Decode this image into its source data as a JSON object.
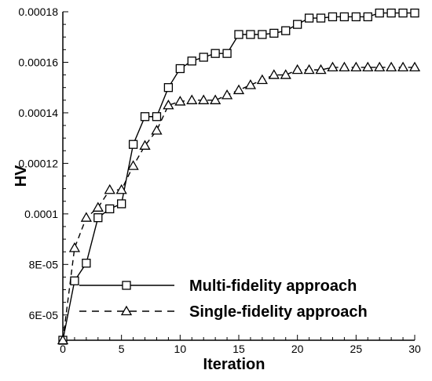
{
  "chart_data": {
    "type": "line",
    "title": "",
    "xlabel": "Iteration",
    "ylabel": "HV",
    "xlim": [
      0,
      30
    ],
    "ylim": [
      5e-05,
      0.00018
    ],
    "x_ticks": [
      {
        "value": 0,
        "label": "0"
      },
      {
        "value": 5,
        "label": "5"
      },
      {
        "value": 10,
        "label": "10"
      },
      {
        "value": 15,
        "label": "15"
      },
      {
        "value": 20,
        "label": "20"
      },
      {
        "value": 25,
        "label": "25"
      },
      {
        "value": 30,
        "label": "30"
      }
    ],
    "y_ticks": [
      {
        "value": 6e-05,
        "label": "6E-05"
      },
      {
        "value": 8e-05,
        "label": "8E-05"
      },
      {
        "value": 0.0001,
        "label": "0.0001"
      },
      {
        "value": 0.00012,
        "label": "0.00012"
      },
      {
        "value": 0.00014,
        "label": "0.00014"
      },
      {
        "value": 0.00016,
        "label": "0.00016"
      },
      {
        "value": 0.00018,
        "label": "0.00018"
      }
    ],
    "grid": false,
    "legend_position": "bottom-right",
    "series": [
      {
        "name": "Multi-fidelity approach",
        "marker": "square",
        "line_style": "solid",
        "x": [
          0,
          1,
          2,
          3,
          4,
          5,
          6,
          7,
          8,
          9,
          10,
          11,
          12,
          13,
          14,
          15,
          16,
          17,
          18,
          19,
          20,
          21,
          22,
          23,
          24,
          25,
          26,
          27,
          28,
          29,
          30
        ],
        "y": [
          5e-05,
          7.35e-05,
          8.05e-05,
          9.85e-05,
          0.000102,
          0.000104,
          0.0001275,
          0.0001385,
          0.0001385,
          0.00015,
          0.0001575,
          0.0001605,
          0.000162,
          0.0001635,
          0.0001635,
          0.000171,
          0.000171,
          0.000171,
          0.0001715,
          0.0001725,
          0.000175,
          0.0001775,
          0.0001775,
          0.000178,
          0.000178,
          0.000178,
          0.000178,
          0.0001795,
          0.0001795,
          0.0001795,
          0.0001795
        ]
      },
      {
        "name": "Single-fidelity approach",
        "marker": "triangle",
        "line_style": "dashed",
        "x": [
          0,
          1,
          2,
          3,
          4,
          5,
          6,
          7,
          8,
          9,
          10,
          11,
          12,
          13,
          14,
          15,
          16,
          17,
          18,
          19,
          20,
          21,
          22,
          23,
          24,
          25,
          26,
          27,
          28,
          29,
          30
        ],
        "y": [
          5e-05,
          8.65e-05,
          9.85e-05,
          0.0001025,
          0.0001095,
          0.0001095,
          0.000119,
          0.000127,
          0.000133,
          0.000143,
          0.0001445,
          0.000145,
          0.000145,
          0.000145,
          0.000147,
          0.000149,
          0.000151,
          0.000153,
          0.000155,
          0.000155,
          0.000157,
          0.000157,
          0.000157,
          0.000158,
          0.000158,
          0.000158,
          0.000158,
          0.000158,
          0.000158,
          0.000158,
          0.000158
        ]
      }
    ]
  }
}
